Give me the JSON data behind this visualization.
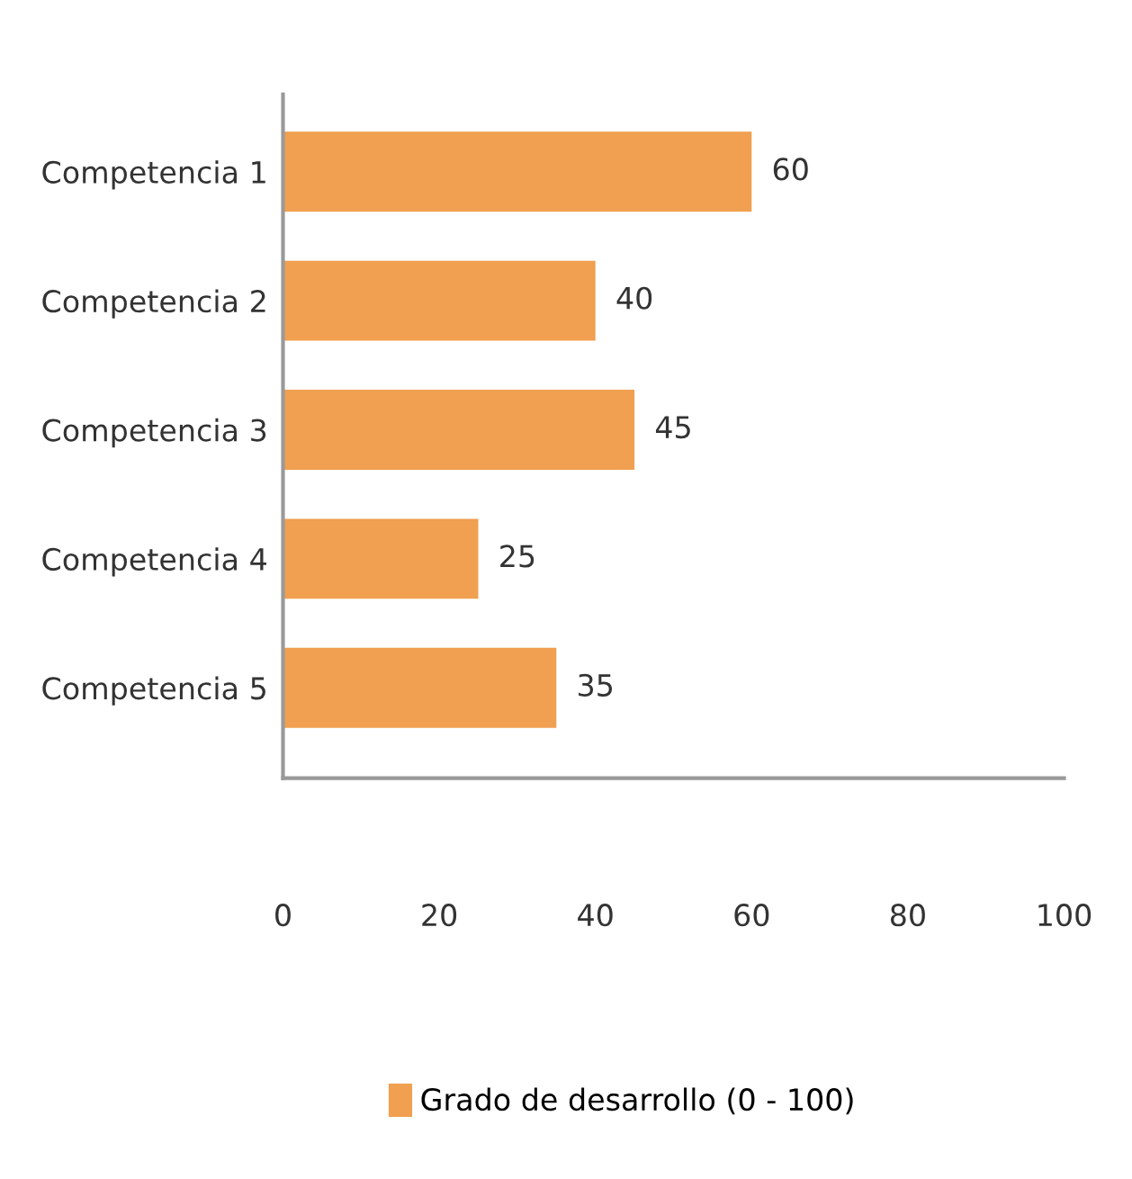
{
  "chart_data": {
    "type": "bar",
    "orientation": "horizontal",
    "categories": [
      "Competencia 1",
      "Competencia 2",
      "Competencia 3",
      "Competencia 4",
      "Competencia 5"
    ],
    "series": [
      {
        "name": "Grado de desarrollo (0 - 100)",
        "color": "#f0a050",
        "values": [
          60,
          40,
          45,
          25,
          35
        ]
      }
    ],
    "xlim": [
      0,
      100
    ],
    "xticks": [
      0,
      20,
      40,
      60,
      80,
      100
    ],
    "data_labels": true,
    "grid": false,
    "legend": "bottom"
  }
}
